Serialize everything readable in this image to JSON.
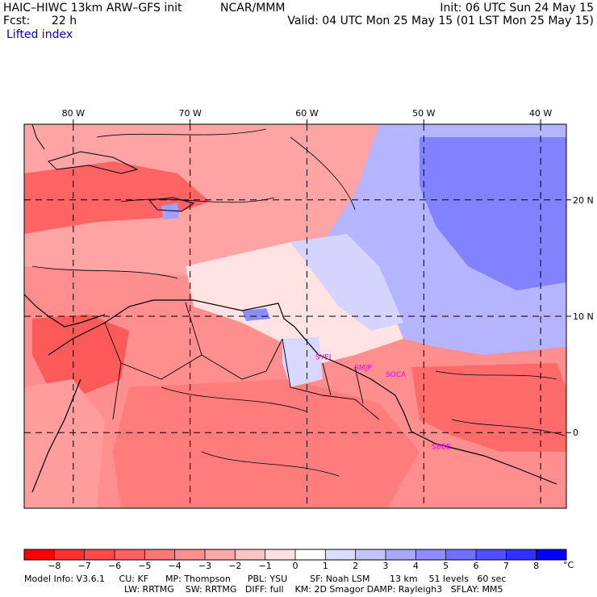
{
  "header": {
    "model": "HAIC–HIWC 13km ARW–GFS init",
    "org": "NCAR/MMM",
    "init": "Init: 06 UTC Sun 24 May 15",
    "fcst_label": "Fcst:",
    "fcst_value": "22 h",
    "valid": "Valid: 04 UTC Mon 25 May 15 (01 LST Mon 25 May 15)",
    "field": "Lifted index"
  },
  "map": {
    "lon_labels": [
      "80 W",
      "70 W",
      "60 W",
      "50 W",
      "40 W"
    ],
    "lon_values": [
      -80,
      -70,
      -60,
      -50,
      -40
    ],
    "lat_labels": [
      "20 N",
      "10 N",
      "0"
    ],
    "lat_values": [
      20,
      10,
      0
    ],
    "lon_range": [
      -84.2,
      -37.8
    ],
    "lat_range": [
      -6.5,
      26.5
    ],
    "stations": [
      {
        "code": "SYEI",
        "lon": -58.6,
        "lat": 6.3
      },
      {
        "code": "SMJP",
        "lon": -55.2,
        "lat": 5.4
      },
      {
        "code": "SOCA",
        "lon": -52.4,
        "lat": 4.8
      },
      {
        "code": "SBBE",
        "lon": -48.5,
        "lat": -1.4
      }
    ]
  },
  "colorbar": {
    "labels": [
      "−8",
      "−7",
      "−6",
      "−5",
      "−4",
      "−3",
      "−2",
      "−1",
      "0",
      "1",
      "2",
      "3",
      "4",
      "5",
      "6",
      "7",
      "8"
    ],
    "unit": "°C",
    "colors": [
      "#ff0000",
      "#ff3030",
      "#ff4a4a",
      "#ff6060",
      "#ff7878",
      "#ff9090",
      "#ffa8a8",
      "#ffc4c4",
      "#ffe0e0",
      "#ffffff",
      "#dcdcff",
      "#c4c4ff",
      "#a8a8ff",
      "#8c8cff",
      "#7070ff",
      "#5050ff",
      "#3030ff",
      "#0000ff"
    ]
  },
  "footer": {
    "line1": "Model Info: V3.6.1     CU: KF      MP: Thompson      PBL: YSU        SF: Noah LSM       13 km    51 levels   60 sec",
    "line2": "LW: RRTMG    SW: RRTMG   DIFF: full    KM: 2D Smagor DAMP: Rayleigh3   SFLAY: MM5"
  }
}
